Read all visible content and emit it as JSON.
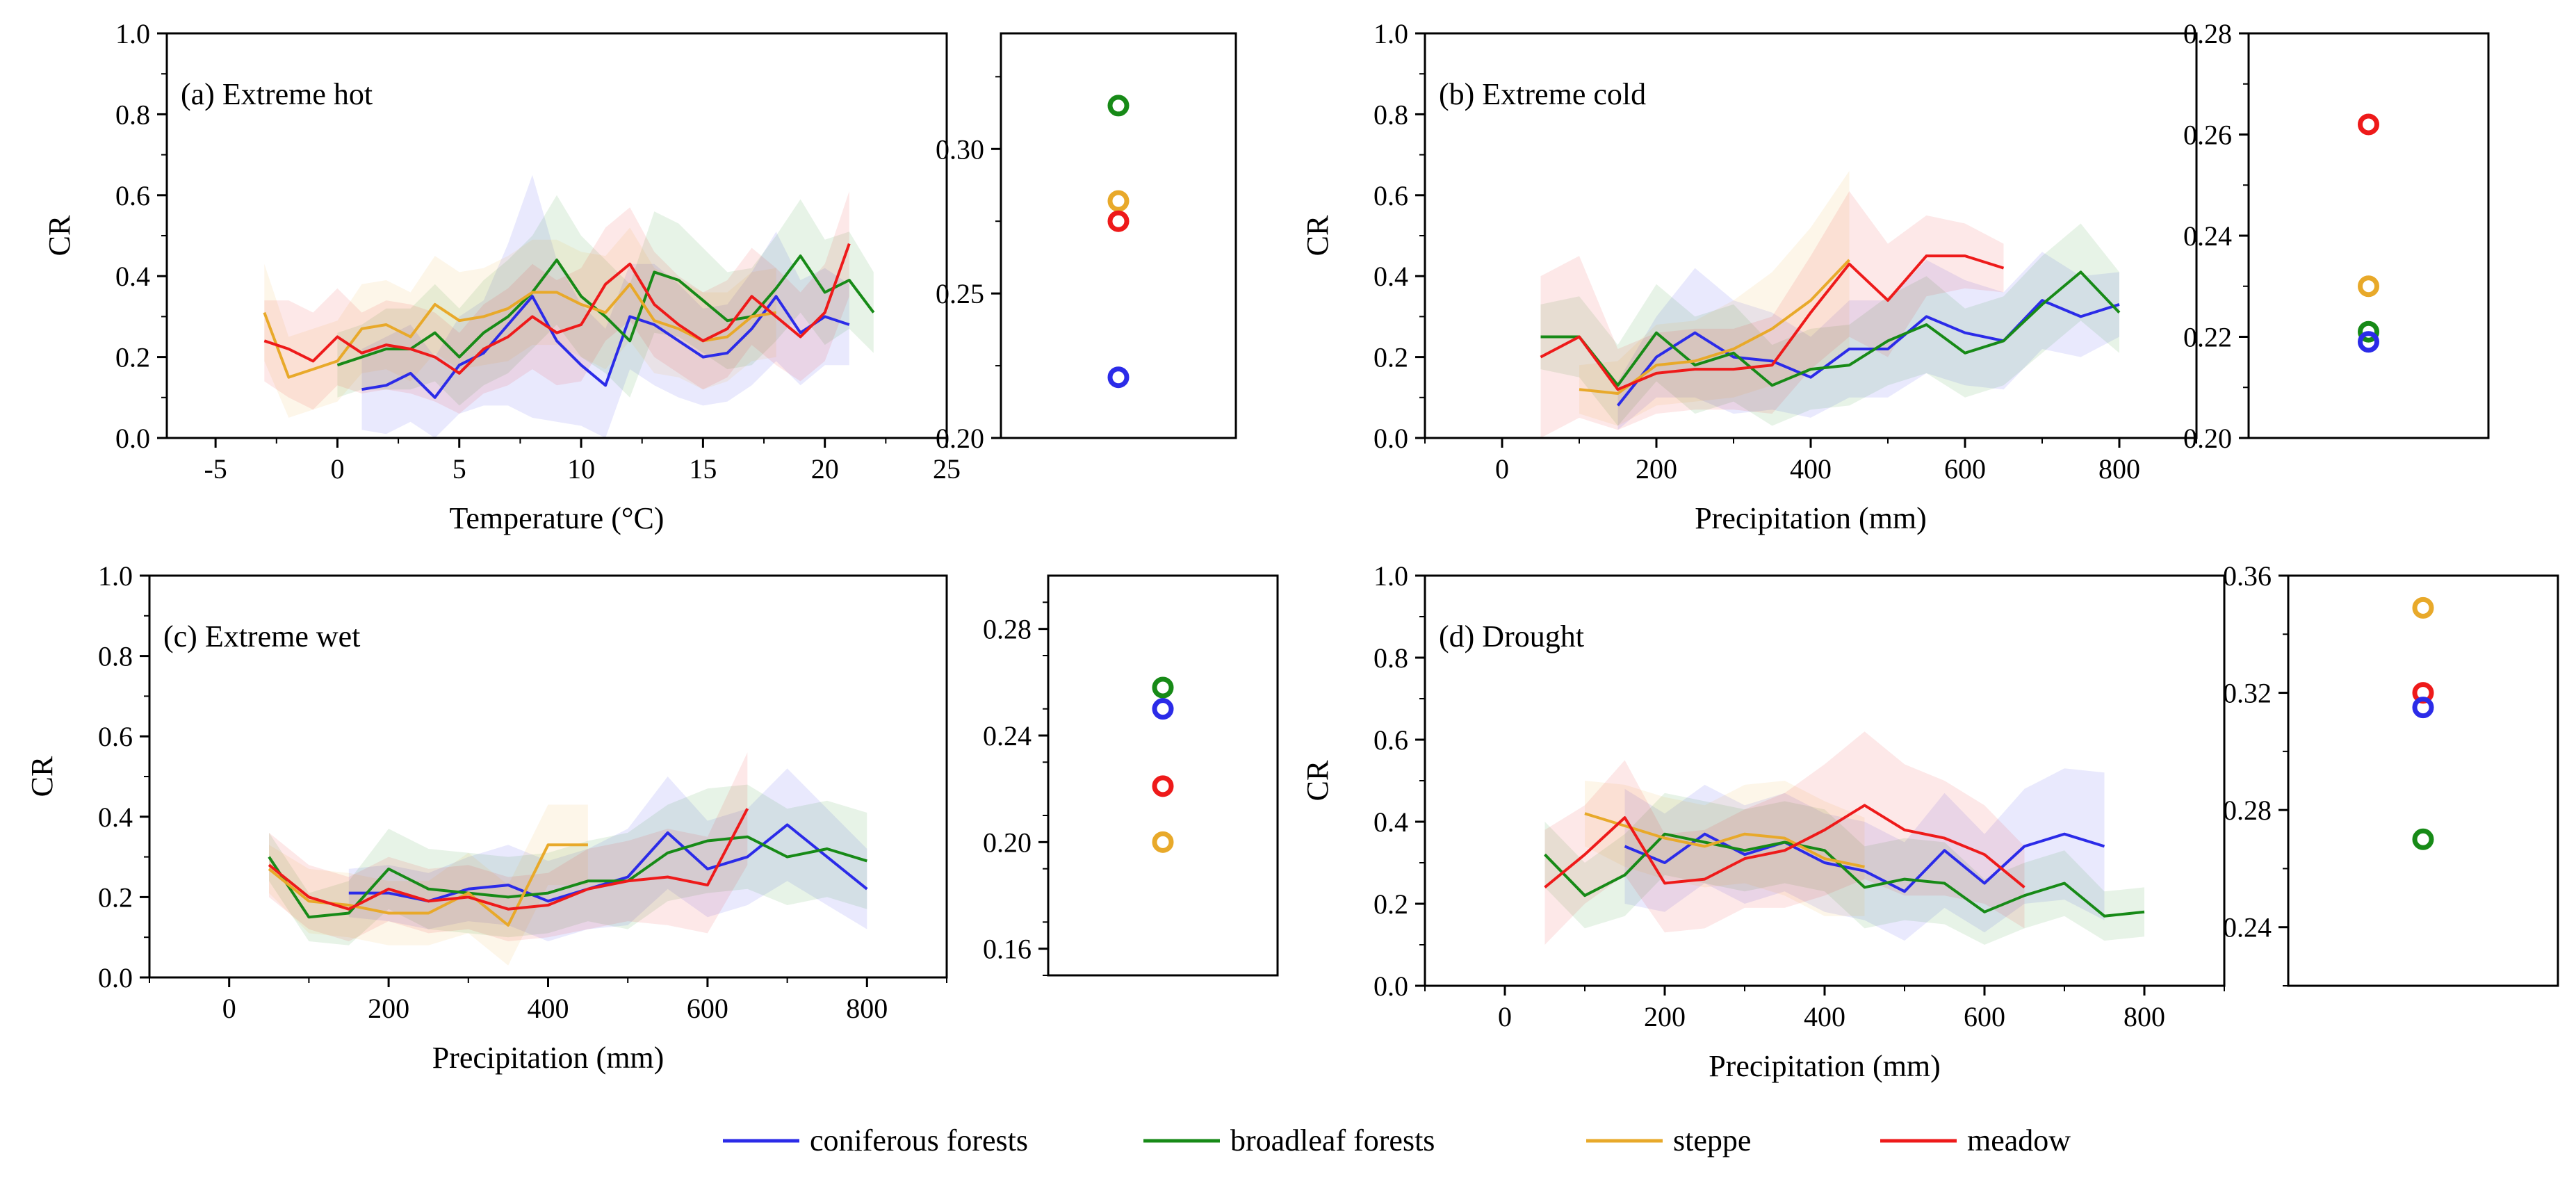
{
  "colors": {
    "coniferous": "#2b2be8",
    "broadleaf": "#178a17",
    "steppe": "#e8a92a",
    "meadow": "#ee1a1a"
  },
  "legend": [
    {
      "key": "coniferous",
      "label": "coniferous forests"
    },
    {
      "key": "broadleaf",
      "label": "broadleaf forests"
    },
    {
      "key": "steppe",
      "label": "steppe"
    },
    {
      "key": "meadow",
      "label": "meadow"
    }
  ],
  "chart_data": [
    {
      "type": "line",
      "id": "a",
      "title": "(a) Extreme hot",
      "xlabel": "Temperature (°C)",
      "ylabel": "CR",
      "xlim": [
        -7,
        25
      ],
      "ylim": [
        0,
        1
      ],
      "xticks": [
        -5,
        0,
        5,
        10,
        15,
        20,
        25
      ],
      "yticks": [
        0,
        0.2,
        0.4,
        0.6,
        0.8,
        1.0
      ],
      "series": [
        {
          "key": "coniferous",
          "name": "coniferous forests",
          "x": [
            1,
            2,
            3,
            4,
            5,
            6,
            7,
            8,
            9,
            10,
            11,
            12,
            13,
            14,
            15,
            16,
            17,
            18,
            19,
            20,
            21
          ],
          "y": [
            0.12,
            0.13,
            0.16,
            0.1,
            0.18,
            0.21,
            0.28,
            0.35,
            0.24,
            0.18,
            0.13,
            0.3,
            0.28,
            0.24,
            0.2,
            0.21,
            0.27,
            0.35,
            0.26,
            0.3,
            0.28
          ],
          "band": [
            0.1,
            0.12,
            0.12,
            0.1,
            0.12,
            0.13,
            0.2,
            0.3,
            0.2,
            0.15,
            0.14,
            0.13,
            0.15,
            0.14,
            0.12,
            0.12,
            0.14,
            0.16,
            0.13,
            0.12,
            0.1
          ]
        },
        {
          "key": "broadleaf",
          "name": "broadleaf forests",
          "x": [
            0,
            1,
            2,
            3,
            4,
            5,
            6,
            7,
            8,
            9,
            10,
            11,
            12,
            13,
            14,
            15,
            16,
            17,
            18,
            19,
            20,
            21,
            22
          ],
          "y": [
            0.18,
            0.2,
            0.22,
            0.22,
            0.26,
            0.2,
            0.26,
            0.3,
            0.36,
            0.44,
            0.35,
            0.3,
            0.24,
            0.41,
            0.39,
            0.34,
            0.29,
            0.3,
            0.37,
            0.45,
            0.36,
            0.39,
            0.31
          ],
          "band": [
            0.08,
            0.08,
            0.1,
            0.1,
            0.12,
            0.12,
            0.13,
            0.14,
            0.14,
            0.16,
            0.15,
            0.14,
            0.14,
            0.15,
            0.14,
            0.13,
            0.12,
            0.12,
            0.13,
            0.14,
            0.13,
            0.12,
            0.1
          ]
        },
        {
          "key": "steppe",
          "name": "steppe",
          "x": [
            -3,
            -2,
            -1,
            0,
            1,
            2,
            3,
            4,
            5,
            6,
            7,
            8,
            9,
            10,
            11,
            12,
            13,
            14,
            15,
            16,
            17,
            18
          ],
          "y": [
            0.31,
            0.15,
            0.17,
            0.19,
            0.27,
            0.28,
            0.25,
            0.33,
            0.29,
            0.3,
            0.32,
            0.36,
            0.36,
            0.33,
            0.31,
            0.38,
            0.29,
            0.27,
            0.24,
            0.25,
            0.3,
            0.31
          ],
          "band": [
            0.12,
            0.1,
            0.1,
            0.1,
            0.11,
            0.11,
            0.11,
            0.12,
            0.12,
            0.12,
            0.13,
            0.13,
            0.13,
            0.13,
            0.14,
            0.14,
            0.13,
            0.12,
            0.12,
            0.11,
            0.11,
            0.11
          ]
        },
        {
          "key": "meadow",
          "name": "meadow",
          "x": [
            -3,
            -2,
            -1,
            0,
            1,
            2,
            3,
            4,
            5,
            6,
            7,
            8,
            9,
            10,
            11,
            12,
            13,
            14,
            15,
            16,
            17,
            18,
            19,
            20,
            21
          ],
          "y": [
            0.24,
            0.22,
            0.19,
            0.25,
            0.21,
            0.23,
            0.22,
            0.2,
            0.16,
            0.22,
            0.25,
            0.3,
            0.26,
            0.28,
            0.38,
            0.43,
            0.33,
            0.28,
            0.24,
            0.27,
            0.35,
            0.3,
            0.25,
            0.31,
            0.48
          ],
          "band": [
            0.1,
            0.12,
            0.12,
            0.12,
            0.1,
            0.11,
            0.11,
            0.11,
            0.1,
            0.11,
            0.12,
            0.13,
            0.13,
            0.14,
            0.14,
            0.14,
            0.13,
            0.12,
            0.12,
            0.12,
            0.12,
            0.12,
            0.11,
            0.12,
            0.13
          ]
        }
      ],
      "side": {
        "ylim": [
          0.2,
          0.34
        ],
        "yticks": [
          0.2,
          0.25,
          0.3
        ],
        "tick_labels": [
          "0.20",
          "0.25",
          "0.30"
        ],
        "minor_step": 0.025,
        "points": {
          "broadleaf": 0.315,
          "steppe": 0.282,
          "meadow": 0.275,
          "coniferous": 0.221
        }
      }
    },
    {
      "type": "line",
      "id": "b",
      "title": "(b) Extreme cold",
      "xlabel": "Precipitation (mm)",
      "ylabel": "CR",
      "xlim": [
        -100,
        900
      ],
      "ylim": [
        0,
        1
      ],
      "xticks": [
        0,
        200,
        400,
        600,
        800
      ],
      "yticks": [
        0,
        0.2,
        0.4,
        0.6,
        0.8,
        1.0
      ],
      "series": [
        {
          "key": "coniferous",
          "name": "coniferous forests",
          "x": [
            150,
            200,
            250,
            300,
            350,
            400,
            450,
            500,
            550,
            600,
            650,
            700,
            750,
            800
          ],
          "y": [
            0.08,
            0.2,
            0.26,
            0.2,
            0.19,
            0.15,
            0.22,
            0.22,
            0.3,
            0.26,
            0.24,
            0.34,
            0.3,
            0.33
          ],
          "band": [
            0.06,
            0.1,
            0.16,
            0.14,
            0.12,
            0.1,
            0.12,
            0.12,
            0.14,
            0.13,
            0.12,
            0.12,
            0.1,
            0.08
          ]
        },
        {
          "key": "broadleaf",
          "name": "broadleaf forests",
          "x": [
            50,
            100,
            150,
            200,
            250,
            300,
            350,
            400,
            450,
            500,
            550,
            600,
            650,
            700,
            750,
            800
          ],
          "y": [
            0.25,
            0.25,
            0.13,
            0.26,
            0.18,
            0.21,
            0.13,
            0.17,
            0.18,
            0.24,
            0.28,
            0.21,
            0.24,
            0.33,
            0.41,
            0.31
          ],
          "band": [
            0.08,
            0.1,
            0.1,
            0.12,
            0.12,
            0.12,
            0.1,
            0.1,
            0.1,
            0.11,
            0.12,
            0.11,
            0.11,
            0.12,
            0.12,
            0.1
          ]
        },
        {
          "key": "steppe",
          "name": "steppe",
          "x": [
            100,
            150,
            200,
            250,
            300,
            350,
            400,
            450
          ],
          "y": [
            0.12,
            0.11,
            0.18,
            0.19,
            0.22,
            0.27,
            0.34,
            0.44
          ],
          "band": [
            0.06,
            0.08,
            0.1,
            0.1,
            0.12,
            0.14,
            0.18,
            0.22
          ]
        },
        {
          "key": "meadow",
          "name": "meadow",
          "x": [
            50,
            100,
            150,
            200,
            250,
            300,
            350,
            400,
            450,
            500,
            550,
            600,
            650
          ],
          "y": [
            0.2,
            0.25,
            0.12,
            0.16,
            0.17,
            0.17,
            0.18,
            0.31,
            0.43,
            0.34,
            0.45,
            0.45,
            0.42
          ],
          "band": [
            0.2,
            0.2,
            0.1,
            0.1,
            0.1,
            0.1,
            0.12,
            0.14,
            0.18,
            0.14,
            0.1,
            0.08,
            0.06
          ]
        }
      ],
      "side": {
        "ylim": [
          0.2,
          0.28
        ],
        "yticks": [
          0.2,
          0.22,
          0.24,
          0.26,
          0.28
        ],
        "tick_labels": [
          "0.20",
          "0.22",
          "0.24",
          "0.26",
          "0.28"
        ],
        "minor_step": 0.01,
        "points": {
          "meadow": 0.262,
          "steppe": 0.23,
          "broadleaf": 0.221,
          "coniferous": 0.219
        }
      }
    },
    {
      "type": "line",
      "id": "c",
      "title": "(c) Extreme wet",
      "xlabel": "Precipitation (mm)",
      "ylabel": "CR",
      "xlim": [
        -100,
        900
      ],
      "ylim": [
        0,
        1
      ],
      "xticks": [
        0,
        200,
        400,
        600,
        800
      ],
      "yticks": [
        0,
        0.2,
        0.4,
        0.6,
        0.8,
        1.0
      ],
      "series": [
        {
          "key": "coniferous",
          "name": "coniferous forests",
          "x": [
            150,
            200,
            250,
            300,
            350,
            400,
            450,
            500,
            550,
            600,
            650,
            700,
            750,
            800
          ],
          "y": [
            0.21,
            0.21,
            0.19,
            0.22,
            0.23,
            0.19,
            0.22,
            0.25,
            0.36,
            0.27,
            0.3,
            0.38,
            0.3,
            0.22
          ],
          "band": [
            0.06,
            0.07,
            0.07,
            0.08,
            0.1,
            0.1,
            0.1,
            0.12,
            0.14,
            0.12,
            0.12,
            0.14,
            0.12,
            0.1
          ]
        },
        {
          "key": "broadleaf",
          "name": "broadleaf forests",
          "x": [
            50,
            100,
            150,
            200,
            250,
            300,
            350,
            400,
            450,
            500,
            550,
            600,
            650,
            700,
            750,
            800
          ],
          "y": [
            0.3,
            0.15,
            0.16,
            0.27,
            0.22,
            0.21,
            0.2,
            0.21,
            0.24,
            0.24,
            0.31,
            0.34,
            0.35,
            0.3,
            0.32,
            0.29
          ],
          "band": [
            0.06,
            0.06,
            0.08,
            0.1,
            0.1,
            0.1,
            0.1,
            0.1,
            0.1,
            0.12,
            0.12,
            0.13,
            0.13,
            0.12,
            0.12,
            0.12
          ]
        },
        {
          "key": "steppe",
          "name": "steppe",
          "x": [
            50,
            100,
            150,
            200,
            250,
            300,
            350,
            400,
            450
          ],
          "y": [
            0.27,
            0.19,
            0.18,
            0.16,
            0.16,
            0.21,
            0.13,
            0.33,
            0.33
          ],
          "band": [
            0.06,
            0.08,
            0.08,
            0.08,
            0.08,
            0.1,
            0.1,
            0.1,
            0.1
          ]
        },
        {
          "key": "meadow",
          "name": "meadow",
          "x": [
            50,
            100,
            150,
            200,
            250,
            300,
            350,
            400,
            450,
            500,
            550,
            600,
            650
          ],
          "y": [
            0.28,
            0.2,
            0.17,
            0.22,
            0.19,
            0.2,
            0.17,
            0.18,
            0.22,
            0.24,
            0.25,
            0.23,
            0.42
          ],
          "band": [
            0.08,
            0.08,
            0.08,
            0.08,
            0.08,
            0.08,
            0.08,
            0.08,
            0.1,
            0.1,
            0.12,
            0.12,
            0.14
          ]
        }
      ],
      "side": {
        "ylim": [
          0.15,
          0.3
        ],
        "yticks": [
          0.16,
          0.2,
          0.24,
          0.28
        ],
        "tick_labels": [
          "0.16",
          "0.20",
          "0.24",
          "0.28"
        ],
        "minor_step": 0.02,
        "points": {
          "broadleaf": 0.258,
          "coniferous": 0.25,
          "meadow": 0.221,
          "steppe": 0.2
        }
      }
    },
    {
      "type": "line",
      "id": "d",
      "title": "(d) Drought",
      "xlabel": "Precipitation (mm)",
      "ylabel": "CR",
      "xlim": [
        -100,
        900
      ],
      "ylim": [
        0,
        1
      ],
      "xticks": [
        0,
        200,
        400,
        600,
        800
      ],
      "yticks": [
        0,
        0.2,
        0.4,
        0.6,
        0.8,
        1.0
      ],
      "series": [
        {
          "key": "coniferous",
          "name": "coniferous forests",
          "x": [
            150,
            200,
            250,
            300,
            350,
            400,
            450,
            500,
            550,
            600,
            650,
            700,
            750
          ],
          "y": [
            0.34,
            0.3,
            0.37,
            0.32,
            0.35,
            0.3,
            0.28,
            0.23,
            0.33,
            0.25,
            0.34,
            0.37,
            0.34
          ],
          "band": [
            0.14,
            0.12,
            0.12,
            0.12,
            0.12,
            0.12,
            0.12,
            0.12,
            0.14,
            0.12,
            0.14,
            0.16,
            0.18
          ]
        },
        {
          "key": "broadleaf",
          "name": "broadleaf forests",
          "x": [
            50,
            100,
            150,
            200,
            250,
            300,
            350,
            400,
            450,
            500,
            550,
            600,
            650,
            700,
            750,
            800
          ],
          "y": [
            0.32,
            0.22,
            0.27,
            0.37,
            0.35,
            0.33,
            0.35,
            0.33,
            0.24,
            0.26,
            0.25,
            0.18,
            0.22,
            0.25,
            0.17,
            0.18
          ],
          "band": [
            0.08,
            0.08,
            0.1,
            0.1,
            0.1,
            0.1,
            0.1,
            0.1,
            0.1,
            0.1,
            0.1,
            0.08,
            0.08,
            0.08,
            0.06,
            0.06
          ]
        },
        {
          "key": "steppe",
          "name": "steppe",
          "x": [
            100,
            150,
            200,
            250,
            300,
            350,
            400,
            450
          ],
          "y": [
            0.42,
            0.39,
            0.36,
            0.34,
            0.37,
            0.36,
            0.31,
            0.29
          ],
          "band": [
            0.08,
            0.1,
            0.1,
            0.1,
            0.12,
            0.14,
            0.14,
            0.12
          ]
        },
        {
          "key": "meadow",
          "name": "meadow",
          "x": [
            50,
            100,
            150,
            200,
            250,
            300,
            350,
            400,
            450,
            500,
            550,
            600,
            650
          ],
          "y": [
            0.24,
            0.32,
            0.41,
            0.25,
            0.26,
            0.31,
            0.33,
            0.38,
            0.44,
            0.38,
            0.36,
            0.32,
            0.24
          ],
          "band": [
            0.14,
            0.12,
            0.14,
            0.12,
            0.12,
            0.12,
            0.14,
            0.16,
            0.18,
            0.16,
            0.14,
            0.12,
            0.1
          ]
        }
      ],
      "side": {
        "ylim": [
          0.22,
          0.36
        ],
        "yticks": [
          0.24,
          0.28,
          0.32,
          0.36
        ],
        "tick_labels": [
          "0.24",
          "0.28",
          "0.32",
          "0.36"
        ],
        "minor_step": 0.02,
        "points": {
          "steppe": 0.349,
          "meadow": 0.32,
          "coniferous": 0.315,
          "broadleaf": 0.27
        }
      }
    }
  ]
}
